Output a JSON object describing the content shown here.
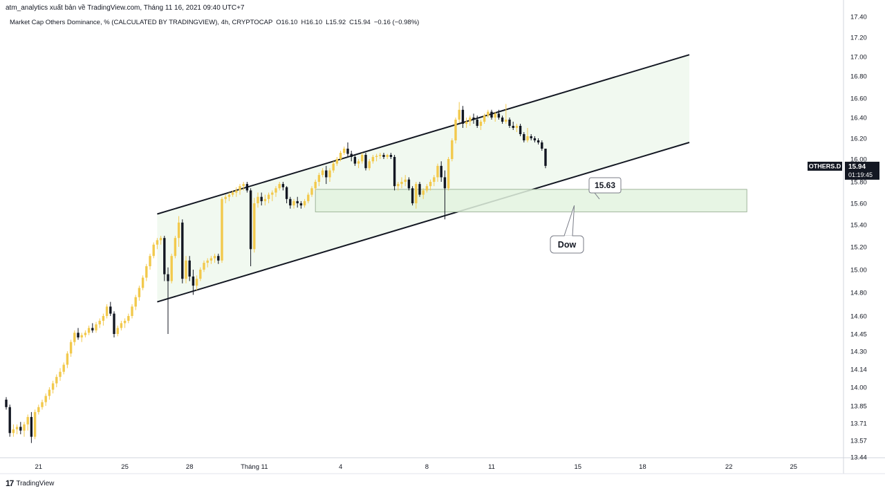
{
  "header": {
    "publisher_line": "atm_analytics xuất bản về TradingView.com, Tháng 11 16, 2021 09:40 UTC+7"
  },
  "legend": {
    "symbol_desc": "Market Cap Others Dominance, % (CALCULATED BY TRADINGVIEW), 4h, CRYPTOCAP",
    "open": "O16.10",
    "high": "H16.10",
    "low": "L15.92",
    "close": "C15.94",
    "change": "−0.16 (−0.98%)"
  },
  "price_tag": {
    "symbol": "OTHERS.D",
    "price": "15.94",
    "countdown": "01:19:45"
  },
  "annotations": {
    "level_label": "15.63",
    "dow_label": "Dow"
  },
  "footer": {
    "brand": "TradingView"
  },
  "colors": {
    "bull": "#f2c94c",
    "bear": "#131722",
    "channel_fill": "#f1f9f0",
    "zone_fill": "#e3f3df",
    "zone_border": "#9fb59a",
    "line": "#131722"
  },
  "chart_data": {
    "type": "candlestick",
    "timeframe": "4h",
    "y_ticks": [
      "17.40",
      "17.20",
      "17.00",
      "16.80",
      "16.60",
      "16.40",
      "16.20",
      "16.00",
      "15.80",
      "15.60",
      "15.40",
      "15.20",
      "15.00",
      "14.80",
      "14.60",
      "14.45",
      "14.30",
      "14.14",
      "14.00",
      "13.85",
      "13.71",
      "13.57",
      "13.44"
    ],
    "x_ticks": [
      {
        "label": "21",
        "bar": 9
      },
      {
        "label": "25",
        "bar": 33
      },
      {
        "label": "28",
        "bar": 51
      },
      {
        "label": "Tháng 11",
        "bar": 69
      },
      {
        "label": "4",
        "bar": 93
      },
      {
        "label": "8",
        "bar": 117
      },
      {
        "label": "11",
        "bar": 135
      },
      {
        "label": "15",
        "bar": 159
      },
      {
        "label": "18",
        "bar": 177
      },
      {
        "label": "22",
        "bar": 201
      },
      {
        "label": "25",
        "bar": 219
      }
    ],
    "candles": [
      [
        13.9,
        13.92,
        13.82,
        13.84
      ],
      [
        13.84,
        13.86,
        13.6,
        13.63
      ],
      [
        13.63,
        13.7,
        13.6,
        13.66
      ],
      [
        13.66,
        13.7,
        13.62,
        13.68
      ],
      [
        13.68,
        13.72,
        13.62,
        13.65
      ],
      [
        13.65,
        13.72,
        13.6,
        13.7
      ],
      [
        13.7,
        13.78,
        13.65,
        13.76
      ],
      [
        13.76,
        13.8,
        13.55,
        13.6
      ],
      [
        13.6,
        13.82,
        13.58,
        13.8
      ],
      [
        13.8,
        13.86,
        13.78,
        13.84
      ],
      [
        13.84,
        13.9,
        13.82,
        13.88
      ],
      [
        13.88,
        13.95,
        13.85,
        13.93
      ],
      [
        13.93,
        14.0,
        13.9,
        13.98
      ],
      [
        13.98,
        14.05,
        13.95,
        14.03
      ],
      [
        14.03,
        14.1,
        14.0,
        14.08
      ],
      [
        14.08,
        14.15,
        14.05,
        14.12
      ],
      [
        14.12,
        14.2,
        14.1,
        14.18
      ],
      [
        14.18,
        14.3,
        14.15,
        14.28
      ],
      [
        14.28,
        14.4,
        14.25,
        14.38
      ],
      [
        14.38,
        14.48,
        14.35,
        14.46
      ],
      [
        14.46,
        14.5,
        14.4,
        14.42
      ],
      [
        14.42,
        14.46,
        14.38,
        14.44
      ],
      [
        14.44,
        14.48,
        14.42,
        14.46
      ],
      [
        14.46,
        14.52,
        14.44,
        14.5
      ],
      [
        14.5,
        14.54,
        14.46,
        14.48
      ],
      [
        14.48,
        14.55,
        14.46,
        14.53
      ],
      [
        14.53,
        14.58,
        14.5,
        14.56
      ],
      [
        14.56,
        14.62,
        14.52,
        14.6
      ],
      [
        14.6,
        14.7,
        14.58,
        14.68
      ],
      [
        14.68,
        14.72,
        14.6,
        14.62
      ],
      [
        14.62,
        14.64,
        14.42,
        14.45
      ],
      [
        14.45,
        14.52,
        14.43,
        14.5
      ],
      [
        14.5,
        14.56,
        14.48,
        14.54
      ],
      [
        14.54,
        14.58,
        14.5,
        14.56
      ],
      [
        14.56,
        14.62,
        14.54,
        14.6
      ],
      [
        14.6,
        14.7,
        14.58,
        14.68
      ],
      [
        14.68,
        14.78,
        14.65,
        14.76
      ],
      [
        14.76,
        14.86,
        14.73,
        14.84
      ],
      [
        14.84,
        14.95,
        14.82,
        14.93
      ],
      [
        14.93,
        15.05,
        14.9,
        15.03
      ],
      [
        15.03,
        15.14,
        15.0,
        15.12
      ],
      [
        15.12,
        15.24,
        15.1,
        15.22
      ],
      [
        15.22,
        15.28,
        15.18,
        15.26
      ],
      [
        15.26,
        15.3,
        15.22,
        15.28
      ],
      [
        15.28,
        15.3,
        14.9,
        14.96
      ],
      [
        14.96,
        15.02,
        14.45,
        14.9
      ],
      [
        14.9,
        15.14,
        14.88,
        15.12
      ],
      [
        15.12,
        15.3,
        15.1,
        15.28
      ],
      [
        15.28,
        15.48,
        15.2,
        15.42
      ],
      [
        15.42,
        15.45,
        14.88,
        14.92
      ],
      [
        14.92,
        15.12,
        14.88,
        15.08
      ],
      [
        15.08,
        15.12,
        14.9,
        14.94
      ],
      [
        14.94,
        15.0,
        14.78,
        14.86
      ],
      [
        14.86,
        14.95,
        14.82,
        14.92
      ],
      [
        14.92,
        15.02,
        14.9,
        15.0
      ],
      [
        15.0,
        15.08,
        14.98,
        15.06
      ],
      [
        15.06,
        15.1,
        15.02,
        15.08
      ],
      [
        15.08,
        15.12,
        15.05,
        15.1
      ],
      [
        15.1,
        15.14,
        15.06,
        15.12
      ],
      [
        15.12,
        15.14,
        15.05,
        15.08
      ],
      [
        15.08,
        15.66,
        15.06,
        15.64
      ],
      [
        15.64,
        15.68,
        15.6,
        15.66
      ],
      [
        15.66,
        15.7,
        15.62,
        15.68
      ],
      [
        15.68,
        15.72,
        15.66,
        15.7
      ],
      [
        15.7,
        15.75,
        15.66,
        15.72
      ],
      [
        15.72,
        15.78,
        15.68,
        15.76
      ],
      [
        15.76,
        15.8,
        15.72,
        15.78
      ],
      [
        15.78,
        15.8,
        15.7,
        15.72
      ],
      [
        15.72,
        15.74,
        15.03,
        15.18
      ],
      [
        15.18,
        15.65,
        15.15,
        15.6
      ],
      [
        15.6,
        15.7,
        15.56,
        15.66
      ],
      [
        15.66,
        15.7,
        15.58,
        15.62
      ],
      [
        15.62,
        15.68,
        15.58,
        15.64
      ],
      [
        15.64,
        15.7,
        15.6,
        15.68
      ],
      [
        15.68,
        15.72,
        15.62,
        15.7
      ],
      [
        15.7,
        15.76,
        15.66,
        15.74
      ],
      [
        15.74,
        15.8,
        15.72,
        15.78
      ],
      [
        15.78,
        15.8,
        15.72,
        15.75
      ],
      [
        15.75,
        15.76,
        15.6,
        15.64
      ],
      [
        15.64,
        15.66,
        15.55,
        15.58
      ],
      [
        15.58,
        15.64,
        15.55,
        15.62
      ],
      [
        15.62,
        15.66,
        15.56,
        15.6
      ],
      [
        15.6,
        15.62,
        15.55,
        15.58
      ],
      [
        15.58,
        15.64,
        15.56,
        15.62
      ],
      [
        15.62,
        15.7,
        15.6,
        15.68
      ],
      [
        15.68,
        15.76,
        15.66,
        15.74
      ],
      [
        15.74,
        15.82,
        15.72,
        15.8
      ],
      [
        15.8,
        15.88,
        15.76,
        15.86
      ],
      [
        15.86,
        15.92,
        15.84,
        15.9
      ],
      [
        15.9,
        15.94,
        15.78,
        15.84
      ],
      [
        15.84,
        15.92,
        15.8,
        15.9
      ],
      [
        15.9,
        15.98,
        15.88,
        15.96
      ],
      [
        15.96,
        16.02,
        15.94,
        16.0
      ],
      [
        16.0,
        16.08,
        15.98,
        16.06
      ],
      [
        16.06,
        16.12,
        16.04,
        16.1
      ],
      [
        16.1,
        16.16,
        16.02,
        16.05
      ],
      [
        16.05,
        16.08,
        15.98,
        16.02
      ],
      [
        16.02,
        16.04,
        15.94,
        15.96
      ],
      [
        15.96,
        16.0,
        15.92,
        15.98
      ],
      [
        15.98,
        16.06,
        15.96,
        16.04
      ],
      [
        16.04,
        16.06,
        15.9,
        15.92
      ],
      [
        15.92,
        16.0,
        15.9,
        15.98
      ],
      [
        15.98,
        16.04,
        15.96,
        16.02
      ],
      [
        16.02,
        16.05,
        15.98,
        16.03
      ],
      [
        16.03,
        16.06,
        16.0,
        16.04
      ],
      [
        16.04,
        16.06,
        16.0,
        16.02
      ],
      [
        16.02,
        16.05,
        16.0,
        16.04
      ],
      [
        16.04,
        16.06,
        16.0,
        16.02
      ],
      [
        16.02,
        16.04,
        15.72,
        15.76
      ],
      [
        15.76,
        15.8,
        15.72,
        15.78
      ],
      [
        15.78,
        15.84,
        15.74,
        15.8
      ],
      [
        15.8,
        15.86,
        15.76,
        15.82
      ],
      [
        15.82,
        15.84,
        15.72,
        15.74
      ],
      [
        15.74,
        15.76,
        15.58,
        15.6
      ],
      [
        15.6,
        15.8,
        15.55,
        15.78
      ],
      [
        15.78,
        15.8,
        15.66,
        15.68
      ],
      [
        15.68,
        15.74,
        15.64,
        15.72
      ],
      [
        15.72,
        15.78,
        15.7,
        15.76
      ],
      [
        15.76,
        15.82,
        15.72,
        15.8
      ],
      [
        15.8,
        15.86,
        15.76,
        15.84
      ],
      [
        15.84,
        15.96,
        15.8,
        15.94
      ],
      [
        15.94,
        15.98,
        15.8,
        15.84
      ],
      [
        15.84,
        15.9,
        15.45,
        15.74
      ],
      [
        15.74,
        16.02,
        15.72,
        16.0
      ],
      [
        16.0,
        16.2,
        15.98,
        16.18
      ],
      [
        16.18,
        16.4,
        16.15,
        16.38
      ],
      [
        16.38,
        16.56,
        16.35,
        16.48
      ],
      [
        16.48,
        16.52,
        16.3,
        16.34
      ],
      [
        16.34,
        16.4,
        16.3,
        16.36
      ],
      [
        16.36,
        16.42,
        16.32,
        16.4
      ],
      [
        16.4,
        16.44,
        16.34,
        16.38
      ],
      [
        16.38,
        16.42,
        16.3,
        16.32
      ],
      [
        16.32,
        16.38,
        16.28,
        16.36
      ],
      [
        16.36,
        16.44,
        16.34,
        16.42
      ],
      [
        16.42,
        16.48,
        16.4,
        16.46
      ],
      [
        16.46,
        16.48,
        16.38,
        16.4
      ],
      [
        16.4,
        16.46,
        16.36,
        16.44
      ],
      [
        16.44,
        16.48,
        16.38,
        16.4
      ],
      [
        16.4,
        16.42,
        16.34,
        16.36
      ],
      [
        16.36,
        16.54,
        16.34,
        16.38
      ],
      [
        16.38,
        16.4,
        16.3,
        16.32
      ],
      [
        16.32,
        16.36,
        16.28,
        16.3
      ],
      [
        16.3,
        16.34,
        16.26,
        16.32
      ],
      [
        16.32,
        16.34,
        16.22,
        16.24
      ],
      [
        16.24,
        16.26,
        16.16,
        16.18
      ],
      [
        16.18,
        16.3,
        16.16,
        16.22
      ],
      [
        16.22,
        16.24,
        16.18,
        16.2
      ],
      [
        16.2,
        16.22,
        16.16,
        16.18
      ],
      [
        16.18,
        16.2,
        16.14,
        16.16
      ],
      [
        16.16,
        16.18,
        16.08,
        16.1
      ],
      [
        16.1,
        16.1,
        15.92,
        15.94
      ]
    ],
    "channel": {
      "upper": {
        "from": {
          "bar": 42,
          "price": 15.5
        },
        "to": {
          "bar": 190,
          "price": 17.02
        }
      },
      "lower": {
        "from": {
          "bar": 42,
          "price": 14.72
        },
        "to": {
          "bar": 190,
          "price": 16.16
        }
      }
    },
    "support_zone": {
      "from_bar": 86,
      "to_bar": 206,
      "top": 15.73,
      "bottom": 15.52
    },
    "level_callout": {
      "value": 15.63,
      "anchor_bar": 165,
      "anchor_price": 15.64
    },
    "dow_callout": {
      "anchor_bar": 158,
      "anchor_price": 15.58
    }
  }
}
